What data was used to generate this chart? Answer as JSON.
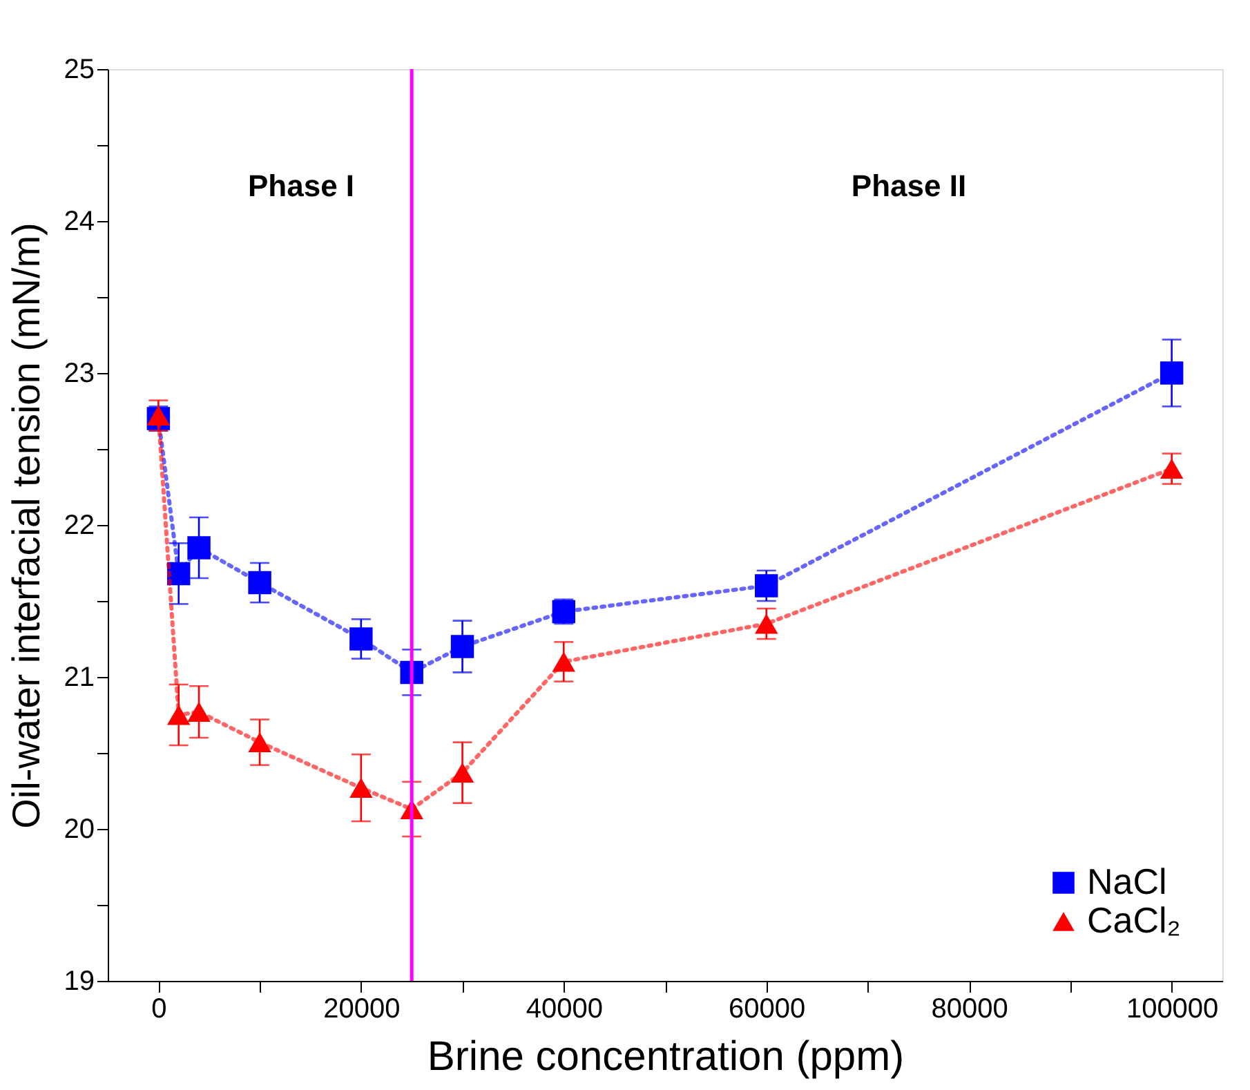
{
  "chart_data": {
    "type": "line",
    "xlabel": "Brine concentration (ppm)",
    "ylabel": "Oil-water interfacial tension (mN/m)",
    "x": [
      0,
      2000,
      4000,
      10000,
      20000,
      25000,
      30000,
      40000,
      60000,
      100000
    ],
    "series": [
      {
        "name": "NaCl",
        "color": "#0000ff",
        "marker": "square",
        "line_style": "dotted",
        "values": [
          22.7,
          21.68,
          21.85,
          21.62,
          21.25,
          21.03,
          21.2,
          21.43,
          21.6,
          23.0
        ],
        "errors": [
          0.08,
          0.2,
          0.2,
          0.13,
          0.13,
          0.15,
          0.17,
          0.08,
          0.1,
          0.22
        ]
      },
      {
        "name": "CaCl₂",
        "color": "#ff0000",
        "marker": "triangle",
        "line_style": "dotted",
        "values": [
          22.72,
          20.75,
          20.77,
          20.57,
          20.27,
          20.13,
          20.37,
          21.1,
          21.35,
          22.37
        ],
        "errors": [
          0.1,
          0.2,
          0.17,
          0.15,
          0.22,
          0.18,
          0.2,
          0.13,
          0.1,
          0.1
        ]
      }
    ],
    "xlim": [
      -5000,
      105000
    ],
    "xticks": [
      0,
      {
        "value": 10000,
        "label": null
      },
      20000,
      {
        "value": 30000,
        "label": null
      },
      40000,
      {
        "value": 50000,
        "label": null
      },
      60000,
      {
        "value": 70000,
        "label": null
      },
      80000,
      {
        "value": 90000,
        "label": null
      },
      100000
    ],
    "ylim": [
      19,
      25
    ],
    "yticks": [
      19,
      {
        "value": 19.5,
        "label": null
      },
      20,
      {
        "value": 20.5,
        "label": null
      },
      21,
      {
        "value": 21.5,
        "label": null
      },
      22,
      {
        "value": 22.5,
        "label": null
      },
      23,
      {
        "value": 23.5,
        "label": null
      },
      24,
      {
        "value": 24.5,
        "label": null
      },
      25
    ],
    "ref_lines": [
      {
        "axis": "x",
        "value": 25000,
        "color": "#ff00ff"
      }
    ],
    "annotations": [
      "Phase I",
      "Phase II"
    ],
    "legend": "bottom right",
    "grid": false
  }
}
